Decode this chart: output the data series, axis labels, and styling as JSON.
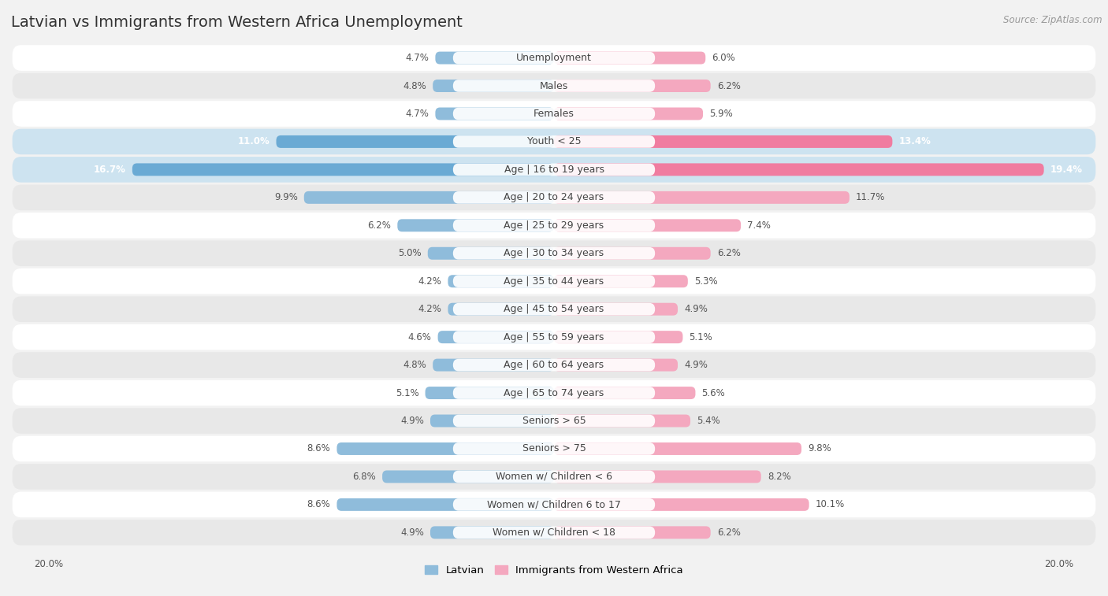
{
  "title": "Latvian vs Immigrants from Western Africa Unemployment",
  "source": "Source: ZipAtlas.com",
  "categories": [
    "Unemployment",
    "Males",
    "Females",
    "Youth < 25",
    "Age | 16 to 19 years",
    "Age | 20 to 24 years",
    "Age | 25 to 29 years",
    "Age | 30 to 34 years",
    "Age | 35 to 44 years",
    "Age | 45 to 54 years",
    "Age | 55 to 59 years",
    "Age | 60 to 64 years",
    "Age | 65 to 74 years",
    "Seniors > 65",
    "Seniors > 75",
    "Women w/ Children < 6",
    "Women w/ Children 6 to 17",
    "Women w/ Children < 18"
  ],
  "latvian": [
    4.7,
    4.8,
    4.7,
    11.0,
    16.7,
    9.9,
    6.2,
    5.0,
    4.2,
    4.2,
    4.6,
    4.8,
    5.1,
    4.9,
    8.6,
    6.8,
    8.6,
    4.9
  ],
  "immigrants": [
    6.0,
    6.2,
    5.9,
    13.4,
    19.4,
    11.7,
    7.4,
    6.2,
    5.3,
    4.9,
    5.1,
    4.9,
    5.6,
    5.4,
    9.8,
    8.2,
    10.1,
    6.2
  ],
  "latvian_color": "#8fbcdb",
  "immigrants_color": "#f4a8bf",
  "latvian_highlight_color": "#6aaad4",
  "immigrants_highlight_color": "#f07ca0",
  "page_bg": "#f2f2f2",
  "row_bg_odd": "#ffffff",
  "row_bg_even": "#e8e8e8",
  "row_bg_highlight": "#cde3f0",
  "highlight_rows": [
    3,
    4
  ],
  "x_max": 20.0,
  "legend_latvian": "Latvian",
  "legend_immigrants": "Immigrants from Western Africa",
  "title_fontsize": 14,
  "label_fontsize": 9.0,
  "value_fontsize": 8.5
}
